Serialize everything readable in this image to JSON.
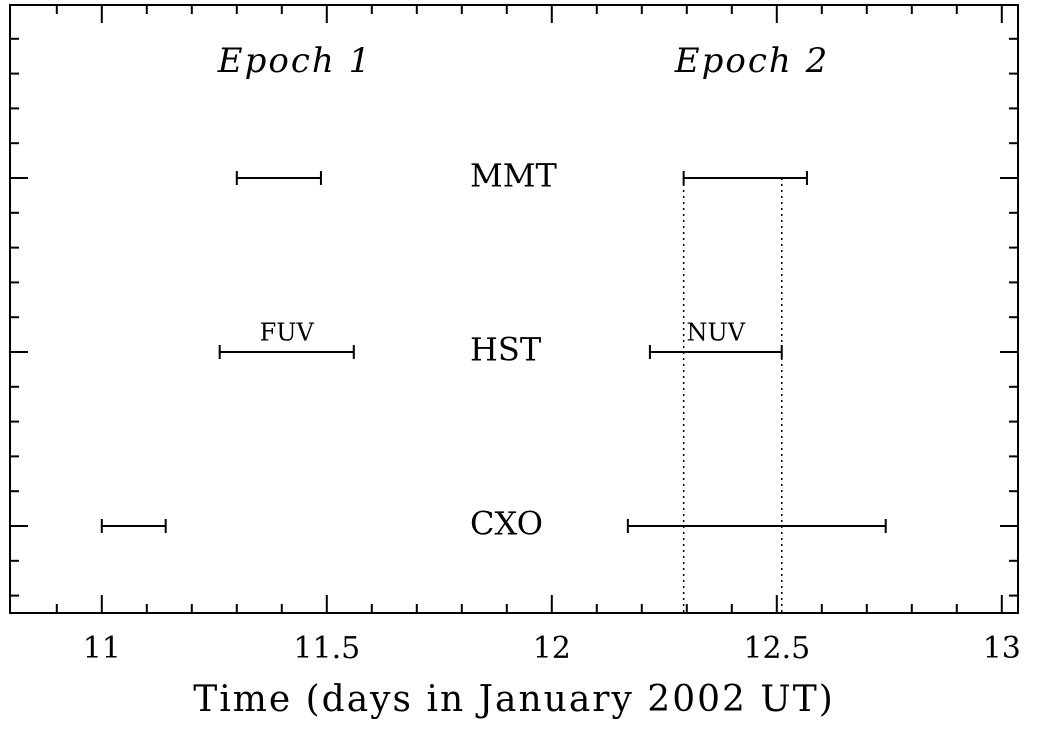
{
  "chart_data": {
    "type": "interval",
    "xlabel": "Time (days in January 2002 UT)",
    "xlim": [
      10.796,
      13.036
    ],
    "xticks": [
      11,
      11.5,
      12,
      12.5,
      13
    ],
    "xminorticks": [
      10.9,
      11.1,
      11.2,
      11.3,
      11.4,
      11.6,
      11.7,
      11.8,
      11.9,
      12.1,
      12.2,
      12.3,
      12.4,
      12.6,
      12.7,
      12.8,
      12.9
    ],
    "epochs": [
      "Epoch 1",
      "Epoch 2"
    ],
    "rows": [
      {
        "name": "CXO",
        "intervals": [
          {
            "start": 11.0,
            "end": 11.142
          },
          {
            "start": 12.169,
            "end": 12.742
          }
        ]
      },
      {
        "name": "HST",
        "intervals": [
          {
            "start": 11.262,
            "end": 11.56,
            "label": "FUV"
          },
          {
            "start": 12.218,
            "end": 12.511,
            "label": "NUV"
          }
        ]
      },
      {
        "name": "MMT",
        "intervals": [
          {
            "start": 11.3,
            "end": 11.487
          },
          {
            "start": 12.293,
            "end": 12.567
          }
        ]
      }
    ],
    "vlines": [
      12.293,
      12.511
    ],
    "color": "#000000"
  }
}
